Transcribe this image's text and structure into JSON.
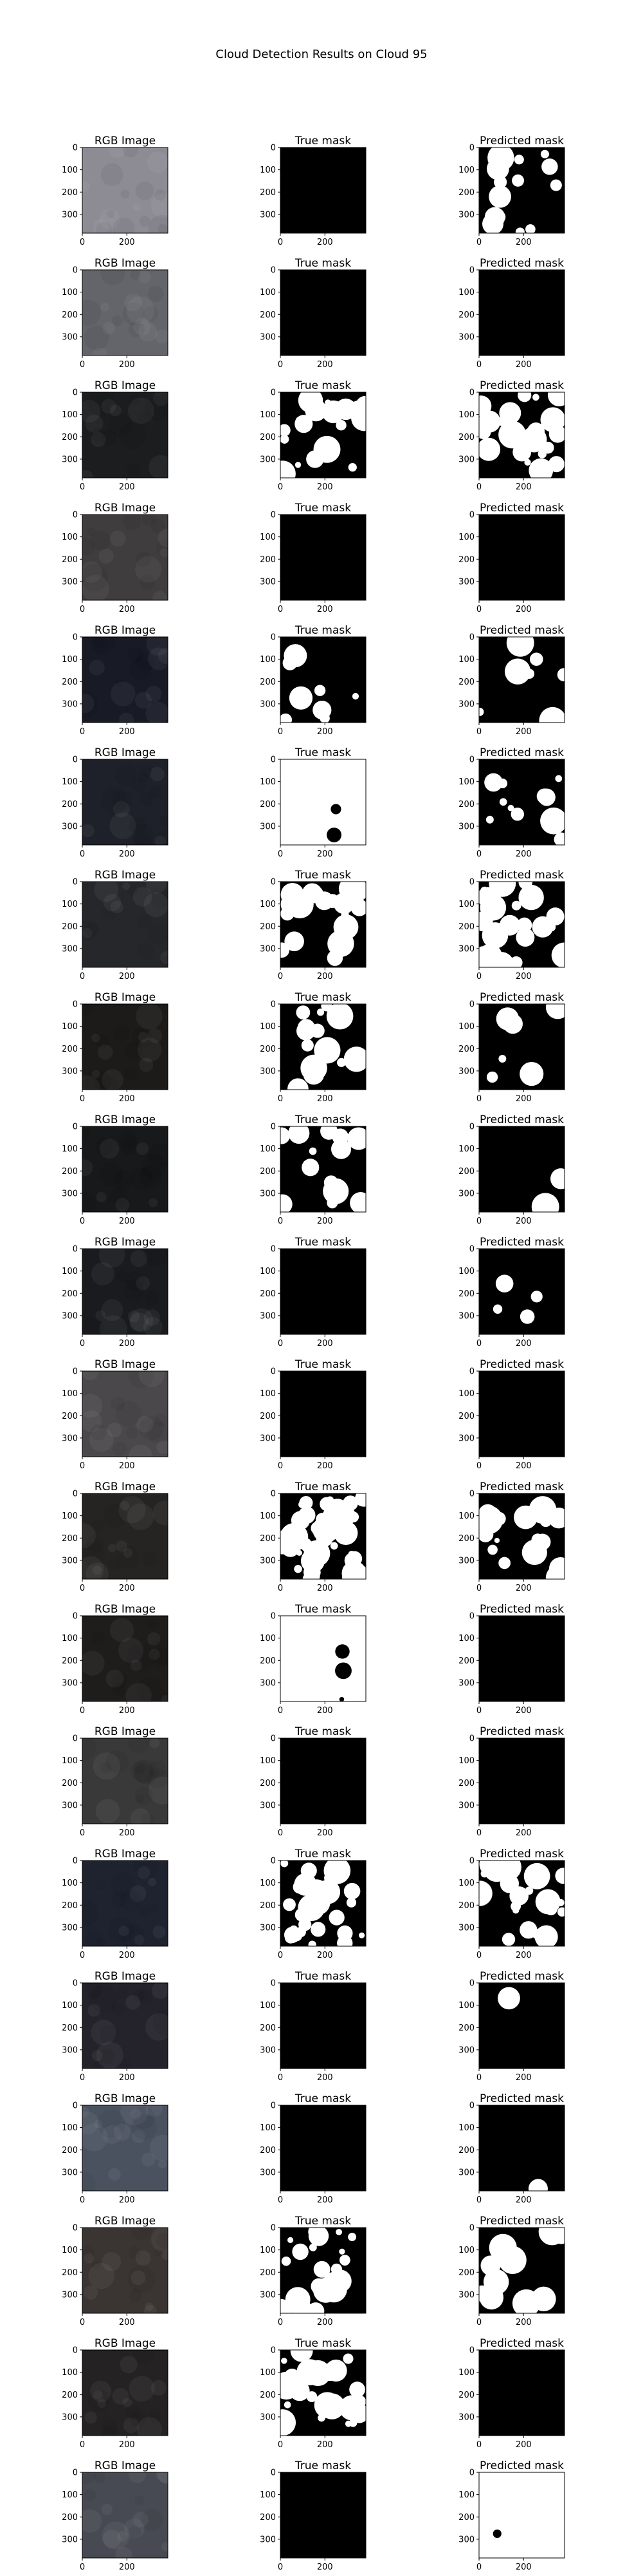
{
  "suptitle": "Cloud Detection Results on Cloud 95",
  "chart_data": {
    "type": "image-grid",
    "title": "Cloud Detection Results on Cloud 95",
    "rows": 20,
    "columns": [
      "RGB Image",
      "True mask",
      "Predicted mask"
    ],
    "axes": {
      "xlim": [
        0,
        384
      ],
      "ylim": [
        384,
        0
      ],
      "xticks": [
        0,
        200
      ],
      "yticks": [
        0,
        100,
        200,
        300
      ],
      "xtick_labels": [
        "0",
        "200"
      ],
      "ytick_labels": [
        "0",
        "100",
        "200",
        "300"
      ]
    },
    "rgb_colors": [
      "#8d8b93",
      "#64656b",
      "#1b1d1f",
      "#3f3d3e",
      "#181b25",
      "#1e2129",
      "#25272b",
      "#1c1b1a",
      "#18191a",
      "#191b1e",
      "#4a484b",
      "#262422",
      "#1f1d1c",
      "#3a3939",
      "#1f2330",
      "#24222b",
      "#4a5260",
      "#3a3432",
      "#242223",
      "#474a52"
    ],
    "true_cloud_fraction": [
      0.0,
      0.0,
      0.35,
      0.0,
      0.12,
      0.97,
      0.45,
      0.3,
      0.28,
      0.0,
      0.0,
      0.75,
      0.95,
      0.0,
      0.42,
      0.0,
      0.0,
      0.35,
      0.5,
      0.0
    ],
    "pred_cloud_fraction": [
      0.22,
      0.0,
      0.42,
      0.0,
      0.14,
      0.12,
      0.5,
      0.12,
      0.03,
      0.04,
      0.0,
      0.36,
      0.0,
      0.0,
      0.38,
      0.005,
      0.003,
      0.33,
      0.0,
      0.99
    ]
  }
}
